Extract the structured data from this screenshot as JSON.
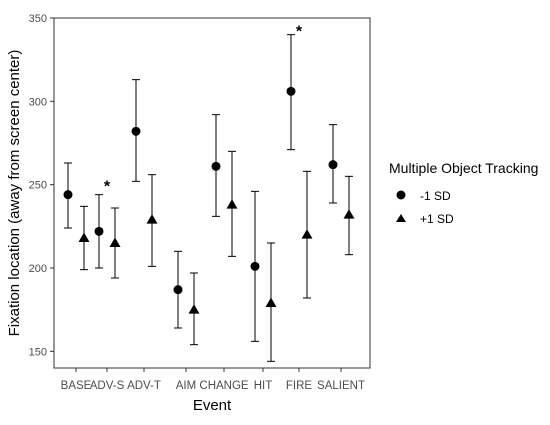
{
  "chart_data": {
    "type": "scatter",
    "xlabel": "Event",
    "ylabel": "Fixation location (away from screen center)",
    "categories": [
      "BASE",
      "ADV-S",
      "ADV-T",
      "AIM",
      "CHANGE",
      "HIT",
      "FIRE",
      "SALIENT"
    ],
    "ylim": [
      140,
      350
    ],
    "yticks": [
      150,
      200,
      250,
      300,
      350
    ],
    "grid": false,
    "legend": {
      "title": "Multiple Object Tracking",
      "placement": "right",
      "entries": [
        {
          "label": "-1 SD",
          "marker": "circle"
        },
        {
          "label": "+1 SD",
          "marker": "triangle"
        }
      ]
    },
    "series": [
      {
        "name": "-1 SD",
        "marker": "circle",
        "values": [
          244,
          222,
          282,
          187,
          261,
          201,
          306,
          262
        ],
        "upper": [
          263,
          244,
          313,
          210,
          292,
          246,
          340,
          286
        ],
        "lower": [
          224,
          200,
          252,
          164,
          231,
          156,
          271,
          239
        ]
      },
      {
        "name": "+1 SD",
        "marker": "triangle",
        "values": [
          218,
          215,
          229,
          175,
          238,
          179,
          220,
          232
        ],
        "upper": [
          237,
          236,
          256,
          197,
          270,
          215,
          258,
          255
        ],
        "lower": [
          199,
          194,
          201,
          154,
          207,
          144,
          182,
          208
        ]
      }
    ],
    "annotations": [
      {
        "text": "*",
        "category": "ADV-S",
        "y": 252
      },
      {
        "text": "*",
        "category": "FIRE",
        "y": 345
      }
    ]
  }
}
